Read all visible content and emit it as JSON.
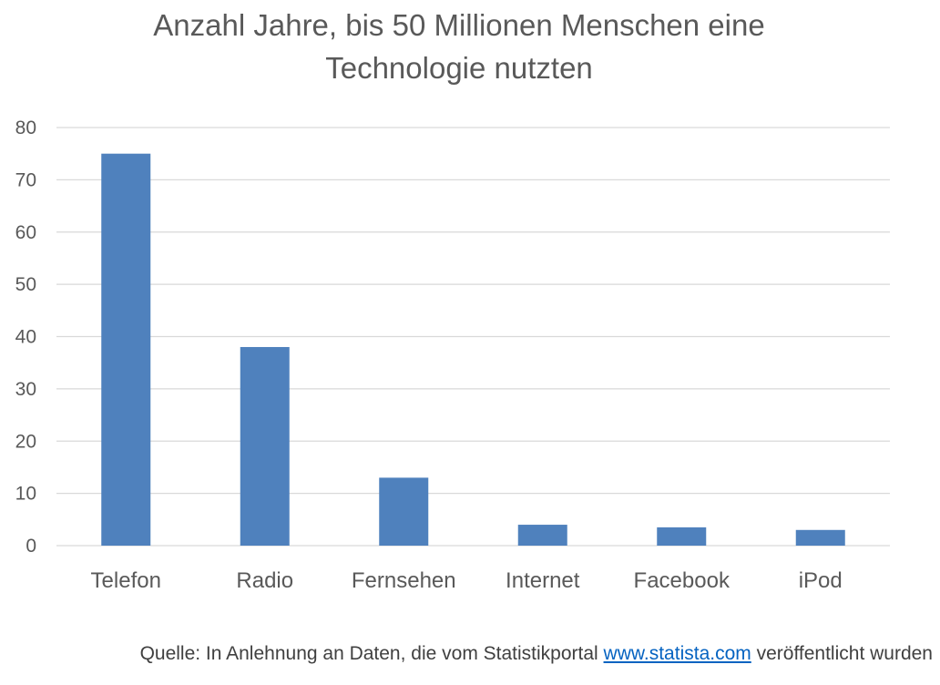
{
  "chart_data": {
    "type": "bar",
    "title": "Anzahl Jahre, bis 50 Millionen Menschen eine Technologie nutzten",
    "title_lines": [
      "Anzahl Jahre, bis 50 Millionen Menschen eine",
      "Technologie nutzten"
    ],
    "categories": [
      "Telefon",
      "Radio",
      "Fernsehen",
      "Internet",
      "Facebook",
      "iPod"
    ],
    "values": [
      75,
      38,
      13,
      4,
      3.5,
      3
    ],
    "xlabel": "",
    "ylabel": "",
    "ylim": [
      0,
      80
    ],
    "yticks": [
      0,
      10,
      20,
      30,
      40,
      50,
      60,
      70,
      80
    ],
    "grid": true,
    "legend": "none",
    "colors": {
      "bar": "#4f81bd",
      "grid": "#d9d9d9",
      "text": "#595959"
    }
  },
  "source": {
    "prefix": "Quelle: In Anlehnung an Daten, die vom Statistikportal ",
    "link_text": "www.statista.com",
    "suffix": " veröffentlicht wurden"
  }
}
